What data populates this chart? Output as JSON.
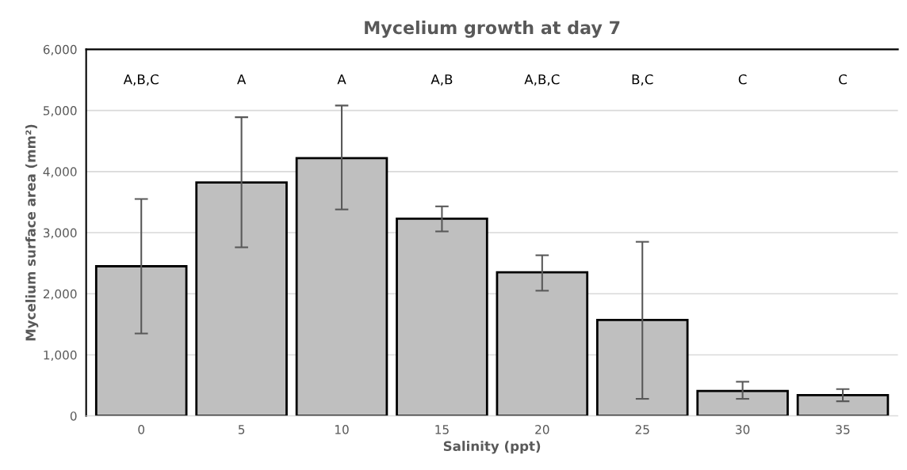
{
  "chart_data": {
    "type": "bar",
    "title": "Mycelium growth at day 7",
    "xlabel": "Salinity (ppt)",
    "ylabel": "Mycelium surface area (mm²)",
    "categories": [
      "0",
      "5",
      "10",
      "15",
      "20",
      "25",
      "30",
      "35"
    ],
    "values": [
      2450,
      3820,
      4220,
      3230,
      2350,
      1570,
      410,
      340
    ],
    "errors": [
      [
        1350,
        3550
      ],
      [
        2760,
        4890
      ],
      [
        3380,
        5080
      ],
      [
        3020,
        3430
      ],
      [
        2050,
        2630
      ],
      [
        280,
        2850
      ],
      [
        280,
        560
      ],
      [
        240,
        440
      ]
    ],
    "color": "#bfbfbf",
    "ylim": [
      0,
      6000
    ],
    "yticks": [
      {
        "value": 0,
        "label": "0"
      },
      {
        "value": 1000,
        "label": "1,000"
      },
      {
        "value": 2000,
        "label": "2,000"
      },
      {
        "value": 3000,
        "label": "3,000"
      },
      {
        "value": 4000,
        "label": "4,000"
      },
      {
        "value": 5000,
        "label": "5,000"
      },
      {
        "value": 6000,
        "label": "6,000"
      }
    ],
    "grid": "y",
    "annotations": [
      "A,B,C",
      "A",
      "A",
      "A,B",
      "A,B,C",
      "B,C",
      "C",
      "C"
    ]
  }
}
